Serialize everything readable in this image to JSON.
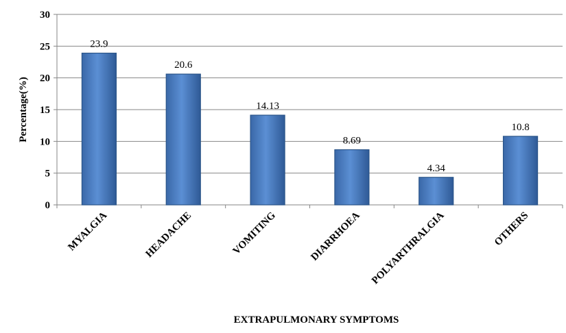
{
  "chart_data": {
    "type": "bar",
    "title": "",
    "xlabel": "EXTRAPULMONARY SYMPTOMS",
    "ylabel": "Percentage(%)",
    "ylim": [
      0,
      30
    ],
    "yticks": [
      0,
      5,
      10,
      15,
      20,
      25,
      30
    ],
    "grid": true,
    "legend": "none",
    "categories": [
      "MYALGIA",
      "HEADACHE",
      "VOMITING",
      "DIARRHOEA",
      "POLYARTHRALGIA",
      "OTHERS"
    ],
    "values": [
      23.9,
      20.6,
      14.13,
      8.69,
      4.34,
      10.8
    ],
    "data_labels": [
      "23.9",
      "20.6",
      "14.13",
      "8.69",
      "4.34",
      "10.8"
    ],
    "bar_color": "#4A7EC4",
    "bar_edge_color": "#2B5589"
  }
}
